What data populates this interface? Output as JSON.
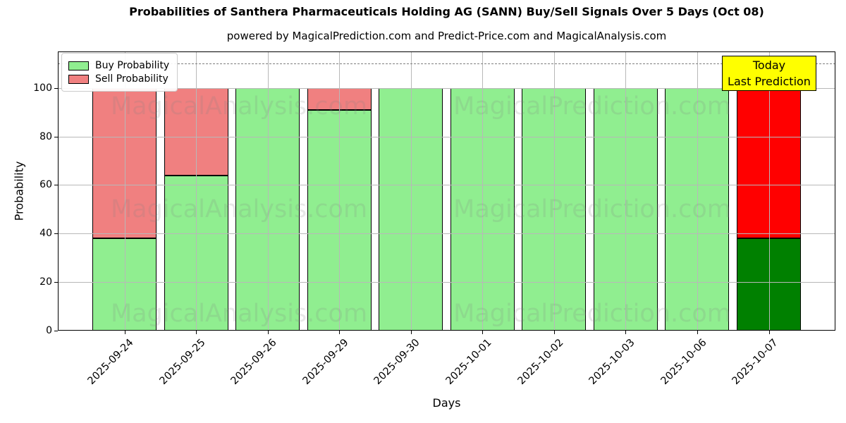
{
  "header": {
    "title": "Probabilities of Santhera Pharmaceuticals Holding AG (SANN) Buy/Sell Signals Over 5 Days (Oct 08)",
    "subtitle": "powered by MagicalPrediction.com and Predict-Price.com and MagicalAnalysis.com"
  },
  "legend": {
    "items": [
      {
        "label": "Buy Probability",
        "color": "#90ee90"
      },
      {
        "label": "Sell Probability",
        "color": "#f08080"
      }
    ]
  },
  "annotation": {
    "line1": "Today",
    "line2": "Last Prediction",
    "bg_color": "#ffff00"
  },
  "watermarks": {
    "left_text": "MagicalAnalysis.com",
    "right_text": "MagicalPrediction.com"
  },
  "chart_data": {
    "type": "bar",
    "stacked": true,
    "title": "Probabilities of Santhera Pharmaceuticals Holding AG (SANN) Buy/Sell Signals Over 5 Days (Oct 08)",
    "xlabel": "Days",
    "ylabel": "Probability",
    "categories": [
      "2025-09-24",
      "2025-09-25",
      "2025-09-26",
      "2025-09-29",
      "2025-09-30",
      "2025-10-01",
      "2025-10-02",
      "2025-10-03",
      "2025-10-06",
      "2025-10-07"
    ],
    "series": [
      {
        "name": "Buy Probability",
        "values": [
          38,
          64,
          100,
          91,
          100,
          100,
          100,
          100,
          100,
          38
        ],
        "color": "#90ee90",
        "today_color": "#008000"
      },
      {
        "name": "Sell Probability",
        "values": [
          62,
          36,
          0,
          9,
          0,
          0,
          0,
          0,
          0,
          62
        ],
        "color": "#f08080",
        "today_color": "#ff0000"
      }
    ],
    "today_index": 9,
    "yticks": [
      0,
      20,
      40,
      60,
      80,
      100
    ],
    "ylim": [
      0,
      115
    ],
    "dashed_hline": 110,
    "grid": true,
    "legend_position": "upper left",
    "bar_edge_color": "#000000"
  }
}
